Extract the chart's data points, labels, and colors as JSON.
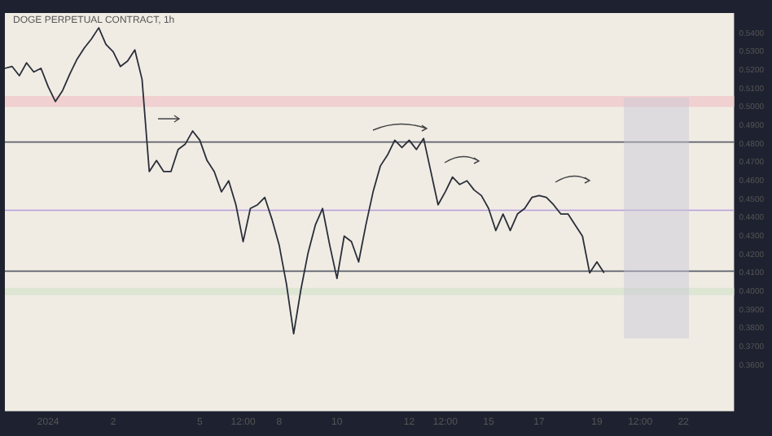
{
  "chart_data": {
    "type": "line",
    "title": "DOGE PERPETUAL CONTRACT, 1h",
    "categories": [
      null,
      null,
      null,
      null,
      null,
      null,
      "2024",
      null,
      null,
      null,
      null,
      null,
      null,
      null,
      null,
      "2",
      null,
      null,
      null,
      null,
      null,
      null,
      null,
      null,
      null,
      null,
      null,
      "5",
      null,
      null,
      null,
      null,
      null,
      "12:00",
      null,
      null,
      null,
      null,
      "8",
      null,
      null,
      null,
      null,
      null,
      null,
      null,
      "10",
      null,
      null,
      null,
      null,
      null,
      null,
      null,
      null,
      null,
      "12",
      null,
      null,
      null,
      null,
      "12:00",
      null,
      null,
      null,
      null,
      null,
      "15",
      null,
      null,
      null,
      null,
      null,
      null,
      "17",
      null,
      null,
      null,
      null,
      null,
      null,
      null,
      "19",
      null,
      null,
      null,
      null,
      null,
      "12:00",
      null,
      null,
      null,
      null,
      null,
      "22",
      null,
      null,
      null,
      null,
      null,
      null,
      null
    ],
    "series": [
      {
        "color": "#2a2e39",
        "values": [
          0.521,
          0.522,
          0.517,
          0.524,
          0.519,
          0.521,
          0.511,
          0.503,
          0.509,
          0.518,
          0.526,
          0.532,
          0.537,
          0.543,
          0.534,
          0.53,
          0.522,
          0.525,
          0.531,
          0.515,
          0.465,
          0.471,
          0.465,
          0.465,
          0.477,
          0.48,
          0.487,
          0.482,
          0.471,
          0.465,
          0.454,
          0.46,
          0.447,
          0.427,
          0.445,
          0.447,
          0.451,
          0.439,
          0.425,
          0.404,
          0.377,
          0.401,
          0.421,
          0.436,
          0.445,
          0.425,
          0.407,
          0.43,
          0.427,
          0.416,
          0.436,
          0.454,
          0.468,
          0.474,
          0.482,
          0.478,
          0.482,
          0.477,
          0.483,
          0.465,
          0.447,
          0.454,
          0.462,
          0.458,
          0.46,
          0.455,
          0.452,
          0.445,
          0.433,
          0.442,
          0.433,
          0.442,
          0.445,
          0.451,
          0.452,
          0.451,
          0.447,
          0.442,
          0.442,
          0.436,
          0.43,
          0.41,
          0.416,
          0.41,
          null,
          null,
          null,
          null,
          null,
          null,
          null,
          null,
          null,
          null,
          null,
          null,
          null,
          null,
          null,
          null,
          null,
          null
        ]
      }
    ],
    "ylim": [
      0.335,
      0.551
    ],
    "yticks": [
      {
        "value": 0.36,
        "label": "0.3600"
      },
      {
        "value": 0.37,
        "label": "0.3700"
      },
      {
        "value": 0.38,
        "label": "0.3800"
      },
      {
        "value": 0.39,
        "label": "0.3900"
      },
      {
        "value": 0.4,
        "label": "0.4000"
      },
      {
        "value": 0.41,
        "label": "0.4100"
      },
      {
        "value": 0.42,
        "label": "0.4200"
      },
      {
        "value": 0.43,
        "label": "0.4300"
      },
      {
        "value": 0.44,
        "label": "0.4400"
      },
      {
        "value": 0.45,
        "label": "0.4500"
      },
      {
        "value": 0.46,
        "label": "0.4600"
      },
      {
        "value": 0.47,
        "label": "0.4700"
      },
      {
        "value": 0.48,
        "label": "0.4800"
      },
      {
        "value": 0.49,
        "label": "0.4900"
      },
      {
        "value": 0.5,
        "label": "0.5000"
      },
      {
        "value": 0.51,
        "label": "0.5100"
      },
      {
        "value": 0.52,
        "label": "0.5200"
      },
      {
        "value": 0.53,
        "label": "0.5300"
      },
      {
        "value": 0.54,
        "label": "0.5400"
      }
    ],
    "ref_lines": [
      {
        "axis": "y",
        "value": 0.481,
        "color": "#5d606b"
      },
      {
        "axis": "y",
        "value": 0.444,
        "color": "#b39ddb"
      },
      {
        "axis": "y",
        "value": 0.411,
        "color": "#5d606b"
      }
    ],
    "bands": [
      {
        "axis": "y",
        "from": 0.5,
        "to": 0.506,
        "color": "#f0d0d0"
      },
      {
        "axis": "y",
        "from": 0.398,
        "to": 0.402,
        "color": "#dde5d3"
      }
    ],
    "marker": "none",
    "line_style": "solid"
  }
}
